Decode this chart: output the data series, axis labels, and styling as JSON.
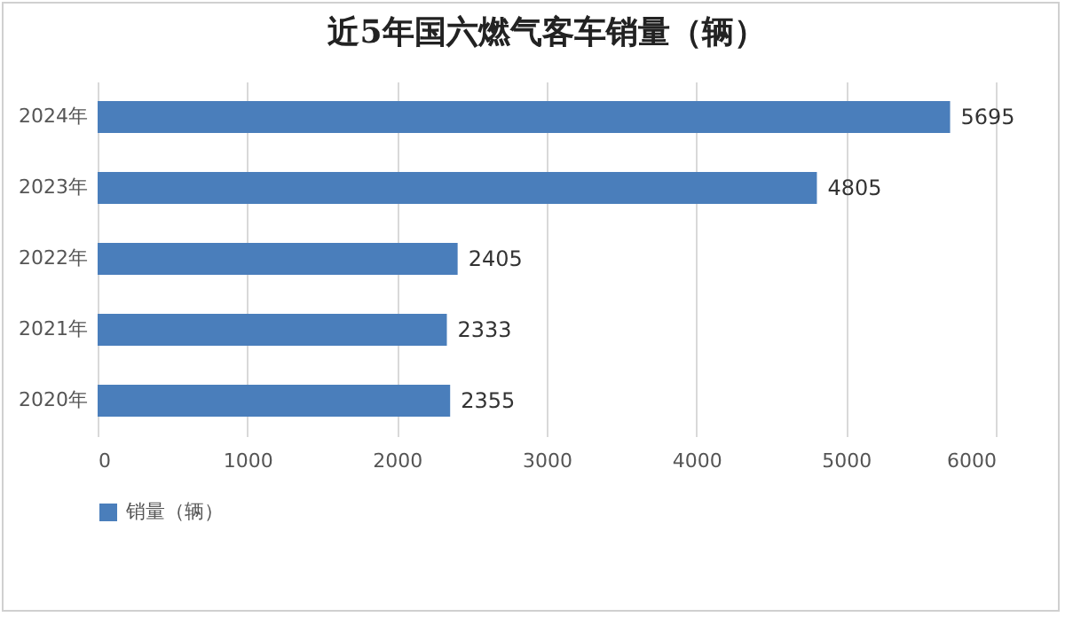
{
  "chart_data": {
    "type": "bar",
    "orientation": "horizontal",
    "title": "近5年国六燃气客车销量（辆）",
    "categories": [
      "2024年",
      "2023年",
      "2022年",
      "2021年",
      "2020年"
    ],
    "series": [
      {
        "name": "销量（辆）",
        "color": "#4a7ebb",
        "values": [
          5695,
          4805,
          2405,
          2333,
          2355
        ]
      }
    ],
    "xlim": [
      0,
      6000
    ],
    "xticks": [
      0,
      1000,
      2000,
      3000,
      4000,
      5000,
      6000
    ],
    "grid": "x",
    "legend": "bottom",
    "data_labels": true
  }
}
